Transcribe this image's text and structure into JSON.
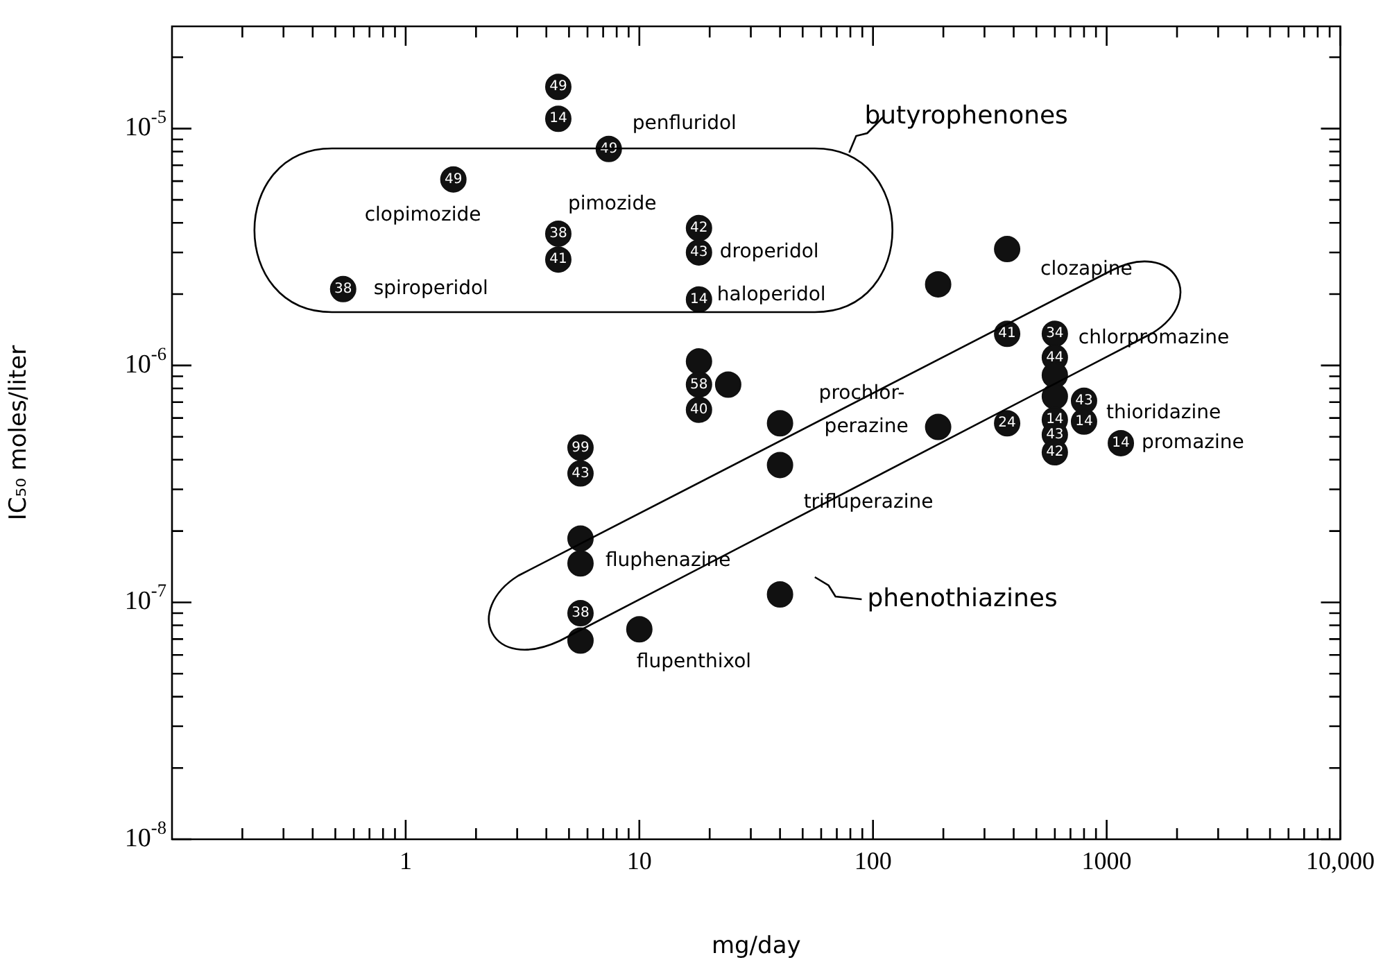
{
  "chart_data": {
    "type": "scatter",
    "xlabel": "mg/day",
    "ylabel": "IC₅₀ moles/liter",
    "log": "xy",
    "marker": "circle",
    "xlim": [
      0.1,
      10000
    ],
    "ylim": [
      1e-08,
      2.7e-05
    ],
    "xticks": [
      {
        "value": 0.2,
        "label": null
      },
      {
        "value": 0.3,
        "label": null
      },
      {
        "value": 0.4,
        "label": null
      },
      {
        "value": 0.5,
        "label": null
      },
      {
        "value": 0.6,
        "label": null
      },
      {
        "value": 0.7,
        "label": null
      },
      {
        "value": 0.8,
        "label": null
      },
      {
        "value": 0.9,
        "label": null
      },
      1,
      {
        "value": 2,
        "label": null
      },
      {
        "value": 3,
        "label": null
      },
      {
        "value": 4,
        "label": null
      },
      {
        "value": 5,
        "label": null
      },
      {
        "value": 6,
        "label": null
      },
      {
        "value": 7,
        "label": null
      },
      {
        "value": 8,
        "label": null
      },
      {
        "value": 9,
        "label": null
      },
      10,
      {
        "value": 20,
        "label": null
      },
      {
        "value": 30,
        "label": null
      },
      {
        "value": 40,
        "label": null
      },
      {
        "value": 50,
        "label": null
      },
      {
        "value": 60,
        "label": null
      },
      {
        "value": 70,
        "label": null
      },
      {
        "value": 80,
        "label": null
      },
      {
        "value": 90,
        "label": null
      },
      100,
      {
        "value": 200,
        "label": null
      },
      {
        "value": 300,
        "label": null
      },
      {
        "value": 400,
        "label": null
      },
      {
        "value": 500,
        "label": null
      },
      {
        "value": 600,
        "label": null
      },
      {
        "value": 700,
        "label": null
      },
      {
        "value": 800,
        "label": null
      },
      {
        "value": 900,
        "label": null
      },
      1000,
      {
        "value": 2000,
        "label": null
      },
      {
        "value": 3000,
        "label": null
      },
      {
        "value": 4000,
        "label": null
      },
      {
        "value": 5000,
        "label": null
      },
      {
        "value": 6000,
        "label": null
      },
      {
        "value": 7000,
        "label": null
      },
      {
        "value": 8000,
        "label": null
      },
      {
        "value": 9000,
        "label": null
      },
      {
        "value": 10000,
        "label": "10,000"
      }
    ],
    "yticks": [
      {
        "value": 1e-08,
        "label": "10$^{-8}$"
      },
      {
        "value": 2e-08,
        "label": null
      },
      {
        "value": 3e-08,
        "label": null
      },
      {
        "value": 4e-08,
        "label": null
      },
      {
        "value": 5e-08,
        "label": null
      },
      {
        "value": 6e-08,
        "label": null
      },
      {
        "value": 7e-08,
        "label": null
      },
      {
        "value": 8e-08,
        "label": null
      },
      {
        "value": 9e-08,
        "label": null
      },
      {
        "value": 1e-07,
        "label": "10$^{-7}$"
      },
      {
        "value": 2e-07,
        "label": null
      },
      {
        "value": 3e-07,
        "label": null
      },
      {
        "value": 4e-07,
        "label": null
      },
      {
        "value": 5e-07,
        "label": null
      },
      {
        "value": 6e-07,
        "label": null
      },
      {
        "value": 7e-07,
        "label": null
      },
      {
        "value": 8e-07,
        "label": null
      },
      {
        "value": 9e-07,
        "label": null
      },
      {
        "value": 1e-06,
        "label": "10$^{-6}$"
      },
      {
        "value": 2e-06,
        "label": null
      },
      {
        "value": 3e-06,
        "label": null
      },
      {
        "value": 4e-06,
        "label": null
      },
      {
        "value": 5e-06,
        "label": null
      },
      {
        "value": 6e-06,
        "label": null
      },
      {
        "value": 7e-06,
        "label": null
      },
      {
        "value": 8e-06,
        "label": null
      },
      {
        "value": 9e-06,
        "label": null
      },
      {
        "value": 1e-05,
        "label": "10$^{-5}$"
      },
      {
        "value": 2e-05,
        "label": null
      }
    ],
    "series": [
      {
        "color": "#111111",
        "x": [
          4.5,
          4.5,
          4.5,
          4.5,
          7.4,
          1.6,
          0.54,
          18,
          18,
          18,
          18,
          18,
          24,
          18,
          5.6,
          5.6,
          5.6,
          5.6,
          5.6,
          5.6,
          10,
          40,
          40,
          40,
          190,
          190,
          375,
          375,
          375,
          600,
          600,
          600,
          600,
          600,
          600,
          600,
          800,
          800,
          1150
        ],
        "values": [
          1.5e-05,
          1.1e-05,
          3.6e-06,
          2.8e-06,
          8.2e-06,
          6.1e-06,
          2.1e-06,
          3.8e-06,
          3e-06,
          1.9e-06,
          1.04e-06,
          8.3e-07,
          8.3e-07,
          6.5e-07,
          4.5e-07,
          3.5e-07,
          1.86e-07,
          1.46e-07,
          9e-08,
          6.9e-08,
          7.7e-08,
          5.7e-07,
          3.8e-07,
          1.08e-07,
          2.2e-06,
          5.5e-07,
          3.1e-06,
          1.36e-06,
          5.7e-07,
          1.36e-06,
          1.08e-06,
          9.1e-07,
          7.4e-07,
          5.9e-07,
          5.1e-07,
          4.3e-07,
          7.1e-07,
          5.8e-07,
          4.7e-07
        ]
      }
    ],
    "annotations": [
      "butyrophenones",
      "phenothiazines",
      {
        "text": "penfluridol",
        "x": 7.4,
        "y": 8.2e-06
      },
      {
        "text": "clopimozide",
        "x": 1.6,
        "y": 6.1e-06
      },
      {
        "text": "pimozide",
        "x": 4.5,
        "y": 3.6e-06
      },
      {
        "text": "spiroperidol",
        "x": 0.54,
        "y": 2.1e-06
      },
      {
        "text": "droperidol",
        "x": 18,
        "y": 3e-06
      },
      {
        "text": "haloperidol",
        "x": 18,
        "y": 1.9e-06
      },
      {
        "text": "clozapine",
        "x": 375,
        "y": 3.1e-06
      },
      {
        "text": "chlorpromazine",
        "x": 600,
        "y": 1.36e-06
      },
      {
        "text": "prochlor-",
        "x": 190,
        "y": 5.5e-07
      },
      {
        "text": "perazine",
        "x": 190,
        "y": 5.5e-07
      },
      {
        "text": "thioridazine",
        "x": 800,
        "y": 5.8e-07
      },
      {
        "text": "promazine",
        "x": 1150,
        "y": 4.7e-07
      },
      {
        "text": "trifluperazine",
        "x": 40,
        "y": 3.8e-07
      },
      {
        "text": "fluphenazine",
        "x": 5.6,
        "y": 1.46e-07
      },
      {
        "text": "flupenthixol",
        "x": 10,
        "y": 7.7e-08
      },
      {
        "text": "49",
        "x": 4.5,
        "y": 1.5e-05
      },
      {
        "text": "14",
        "x": 4.5,
        "y": 1.1e-05
      },
      {
        "text": "38",
        "x": 4.5,
        "y": 3.6e-06
      },
      {
        "text": "41",
        "x": 4.5,
        "y": 2.8e-06
      },
      {
        "text": "49",
        "x": 7.4,
        "y": 8.2e-06
      },
      {
        "text": "49",
        "x": 1.6,
        "y": 6.1e-06
      },
      {
        "text": "38",
        "x": 0.54,
        "y": 2.1e-06
      },
      {
        "text": "42",
        "x": 18,
        "y": 3.8e-06
      },
      {
        "text": "43",
        "x": 18,
        "y": 3e-06
      },
      {
        "text": "14",
        "x": 18,
        "y": 1.9e-06
      },
      {
        "text": "58",
        "x": 18,
        "y": 8.3e-07
      },
      {
        "text": "40",
        "x": 18,
        "y": 6.5e-07
      },
      {
        "text": "99",
        "x": 5.6,
        "y": 4.5e-07
      },
      {
        "text": "43",
        "x": 5.6,
        "y": 3.5e-07
      },
      {
        "text": "38",
        "x": 5.6,
        "y": 9e-08
      },
      {
        "text": "41",
        "x": 375,
        "y": 1.36e-06
      },
      {
        "text": "24",
        "x": 375,
        "y": 5.7e-07
      },
      {
        "text": "34",
        "x": 600,
        "y": 1.36e-06
      },
      {
        "text": "44",
        "x": 600,
        "y": 1.08e-06
      },
      {
        "text": "14",
        "x": 600,
        "y": 5.9e-07
      },
      {
        "text": "43",
        "x": 600,
        "y": 5.1e-07
      },
      {
        "text": "42",
        "x": 600,
        "y": 4.3e-07
      },
      {
        "text": "43",
        "x": 800,
        "y": 7.1e-07
      },
      {
        "text": "14",
        "x": 800,
        "y": 5.8e-07
      },
      {
        "text": "14",
        "x": 1150,
        "y": 4.7e-07
      }
    ]
  }
}
